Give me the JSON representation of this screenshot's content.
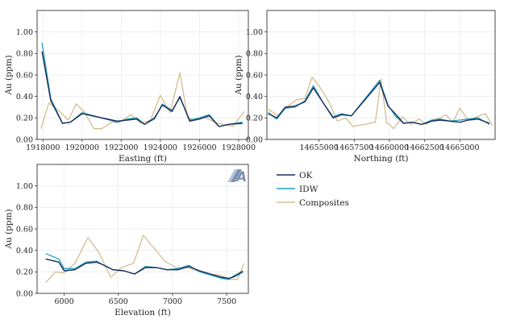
{
  "colors": {
    "ok": "#1c2b5a",
    "idw": "#1ea0c2",
    "composites": "#d4bd8f",
    "logo_dark": "#7f8fb0",
    "logo_light": "#b7c3d8"
  },
  "logo": {
    "letter": "A"
  },
  "legend": {
    "ok": "OK",
    "idw": "IDW",
    "composites": "Composites"
  },
  "chart_data": [
    {
      "type": "line",
      "title": "",
      "xlabel": "Easting (ft)",
      "ylabel": "Au (ppm)",
      "xlim": [
        1917700,
        1928500
      ],
      "ylim": [
        0,
        1.2
      ],
      "xticks": [
        1918000,
        1920000,
        1922000,
        1924000,
        1926000,
        1928000
      ],
      "xtick_labels": [
        "1918000",
        "1920000",
        "1922000",
        "1924000",
        "1926000",
        "1928000"
      ],
      "yticks": [
        0,
        0.2,
        0.4,
        0.6,
        0.8,
        1.0
      ],
      "ytick_labels": [
        "0.00",
        "0.20",
        "0.40",
        "0.60",
        "0.80",
        "1.00"
      ],
      "series": [
        {
          "name": "OK",
          "x": [
            1917950,
            1918400,
            1919000,
            1919400,
            1920000,
            1921000,
            1921800,
            1922300,
            1922800,
            1923200,
            1923700,
            1924100,
            1924600,
            1925000,
            1925500,
            1926000,
            1926500,
            1927000,
            1927500,
            1928200
          ],
          "y": [
            0.82,
            0.36,
            0.15,
            0.16,
            0.24,
            0.2,
            0.17,
            0.18,
            0.19,
            0.14,
            0.2,
            0.32,
            0.26,
            0.4,
            0.17,
            0.19,
            0.22,
            0.12,
            0.14,
            0.15
          ]
        },
        {
          "name": "IDW",
          "x": [
            1917950,
            1918400,
            1919000,
            1919400,
            1920000,
            1921000,
            1921800,
            1922300,
            1922800,
            1923200,
            1923700,
            1924100,
            1924600,
            1925000,
            1925500,
            1926000,
            1926500,
            1927000,
            1927500,
            1928200
          ],
          "y": [
            0.9,
            0.38,
            0.15,
            0.16,
            0.25,
            0.2,
            0.16,
            0.19,
            0.2,
            0.14,
            0.19,
            0.33,
            0.27,
            0.39,
            0.18,
            0.2,
            0.23,
            0.12,
            0.14,
            0.16
          ]
        },
        {
          "name": "Composites",
          "x": [
            1917900,
            1918300,
            1918800,
            1919300,
            1919700,
            1920100,
            1920600,
            1921000,
            1921500,
            1921900,
            1922500,
            1923000,
            1923500,
            1924000,
            1924500,
            1925000,
            1925400,
            1925800,
            1926200,
            1926800,
            1927200,
            1927700,
            1928300
          ],
          "y": [
            0.1,
            0.34,
            0.27,
            0.18,
            0.33,
            0.26,
            0.1,
            0.1,
            0.16,
            0.16,
            0.23,
            0.15,
            0.18,
            0.41,
            0.25,
            0.62,
            0.2,
            0.18,
            0.21,
            0.16,
            0.14,
            0.12,
            0.26
          ]
        }
      ]
    },
    {
      "type": "line",
      "title": "",
      "xlabel": "Northing (ft)",
      "ylabel": "Au (ppm)",
      "xlim": [
        14651300,
        14667500
      ],
      "ylim": [
        0,
        1.2
      ],
      "xticks": [
        14655000,
        14657500,
        14660000,
        14662500,
        14665000
      ],
      "xtick_labels": [
        "14655000",
        "14657500",
        "14660000",
        "14662500",
        "14665000"
      ],
      "yticks": [
        0,
        0.2,
        0.4,
        0.6,
        0.8,
        1.0
      ],
      "ytick_labels": [
        "0.00",
        "0.20",
        "0.40",
        "0.60",
        "0.80",
        "1.00"
      ],
      "series": [
        {
          "name": "OK",
          "x": [
            14651400,
            14652000,
            14652600,
            14653300,
            14654000,
            14654600,
            14655300,
            14656000,
            14656600,
            14657300,
            14659300,
            14659900,
            14660400,
            14661000,
            14661600,
            14662300,
            14663000,
            14663600,
            14664300,
            14665000,
            14665600,
            14666300,
            14667100
          ],
          "y": [
            0.24,
            0.2,
            0.3,
            0.31,
            0.35,
            0.48,
            0.34,
            0.2,
            0.23,
            0.22,
            0.53,
            0.31,
            0.24,
            0.15,
            0.16,
            0.14,
            0.17,
            0.18,
            0.17,
            0.16,
            0.18,
            0.19,
            0.15
          ]
        },
        {
          "name": "IDW",
          "x": [
            14651400,
            14652000,
            14652600,
            14653300,
            14654000,
            14654600,
            14655300,
            14656000,
            14656600,
            14657300,
            14659300,
            14659900,
            14660400,
            14661000,
            14661600,
            14662300,
            14663000,
            14663600,
            14664300,
            14665000,
            14665600,
            14666300,
            14667100
          ],
          "y": [
            0.25,
            0.19,
            0.29,
            0.3,
            0.36,
            0.5,
            0.34,
            0.21,
            0.24,
            0.22,
            0.55,
            0.32,
            0.22,
            0.15,
            0.16,
            0.14,
            0.18,
            0.19,
            0.17,
            0.18,
            0.19,
            0.2,
            0.14
          ]
        },
        {
          "name": "Composites",
          "x": [
            14651400,
            14652100,
            14652800,
            14653400,
            14654000,
            14654500,
            14655000,
            14655700,
            14656300,
            14656900,
            14657400,
            14659000,
            14659400,
            14659800,
            14660300,
            14660900,
            14661500,
            14662100,
            14662600,
            14663100,
            14663600,
            14664000,
            14664500,
            14665000,
            14665600,
            14666200,
            14666800,
            14667300
          ],
          "y": [
            0.28,
            0.22,
            0.31,
            0.37,
            0.38,
            0.58,
            0.5,
            0.35,
            0.17,
            0.2,
            0.12,
            0.16,
            0.56,
            0.16,
            0.1,
            0.21,
            0.14,
            0.19,
            0.14,
            0.18,
            0.2,
            0.23,
            0.16,
            0.29,
            0.18,
            0.21,
            0.24,
            0.13
          ]
        }
      ]
    },
    {
      "type": "line",
      "title": "",
      "xlabel": "Elevation (ft)",
      "ylabel": "Au (ppm)",
      "xlim": [
        5750,
        7700
      ],
      "ylim": [
        0,
        1.2
      ],
      "xticks": [
        6000,
        6500,
        7000,
        7500
      ],
      "xtick_labels": [
        "6000",
        "6500",
        "7000",
        "7500"
      ],
      "yticks": [
        0,
        0.2,
        0.4,
        0.6,
        0.8,
        1.0
      ],
      "ytick_labels": [
        "0.00",
        "0.20",
        "0.40",
        "0.60",
        "0.80",
        "1.00"
      ],
      "series": [
        {
          "name": "OK",
          "x": [
            5830,
            5950,
            6000,
            6100,
            6200,
            6300,
            6350,
            6450,
            6550,
            6650,
            6750,
            6850,
            6950,
            7050,
            7150,
            7250,
            7350,
            7450,
            7520,
            7560,
            7650
          ],
          "y": [
            0.32,
            0.29,
            0.21,
            0.22,
            0.28,
            0.29,
            0.27,
            0.22,
            0.21,
            0.18,
            0.24,
            0.24,
            0.22,
            0.22,
            0.25,
            0.21,
            0.18,
            0.15,
            0.14,
            0.15,
            0.2
          ]
        },
        {
          "name": "IDW",
          "x": [
            5830,
            5950,
            6000,
            6100,
            6200,
            6300,
            6350,
            6450,
            6550,
            6650,
            6750,
            6850,
            6950,
            7050,
            7150,
            7250,
            7350,
            7450,
            7520,
            7560,
            7650
          ],
          "y": [
            0.37,
            0.32,
            0.23,
            0.23,
            0.29,
            0.3,
            0.27,
            0.22,
            0.21,
            0.18,
            0.25,
            0.24,
            0.22,
            0.23,
            0.26,
            0.2,
            0.17,
            0.14,
            0.13,
            0.16,
            0.21
          ]
        },
        {
          "name": "Composites",
          "x": [
            5830,
            5920,
            6000,
            6100,
            6220,
            6320,
            6430,
            6530,
            6640,
            6730,
            6830,
            6930,
            7030,
            7130,
            7230,
            7330,
            7430,
            7530,
            7600,
            7660
          ],
          "y": [
            0.1,
            0.2,
            0.19,
            0.28,
            0.52,
            0.38,
            0.15,
            0.24,
            0.28,
            0.54,
            0.42,
            0.3,
            0.24,
            0.24,
            0.21,
            0.18,
            0.17,
            0.13,
            0.13,
            0.28
          ]
        }
      ]
    }
  ]
}
